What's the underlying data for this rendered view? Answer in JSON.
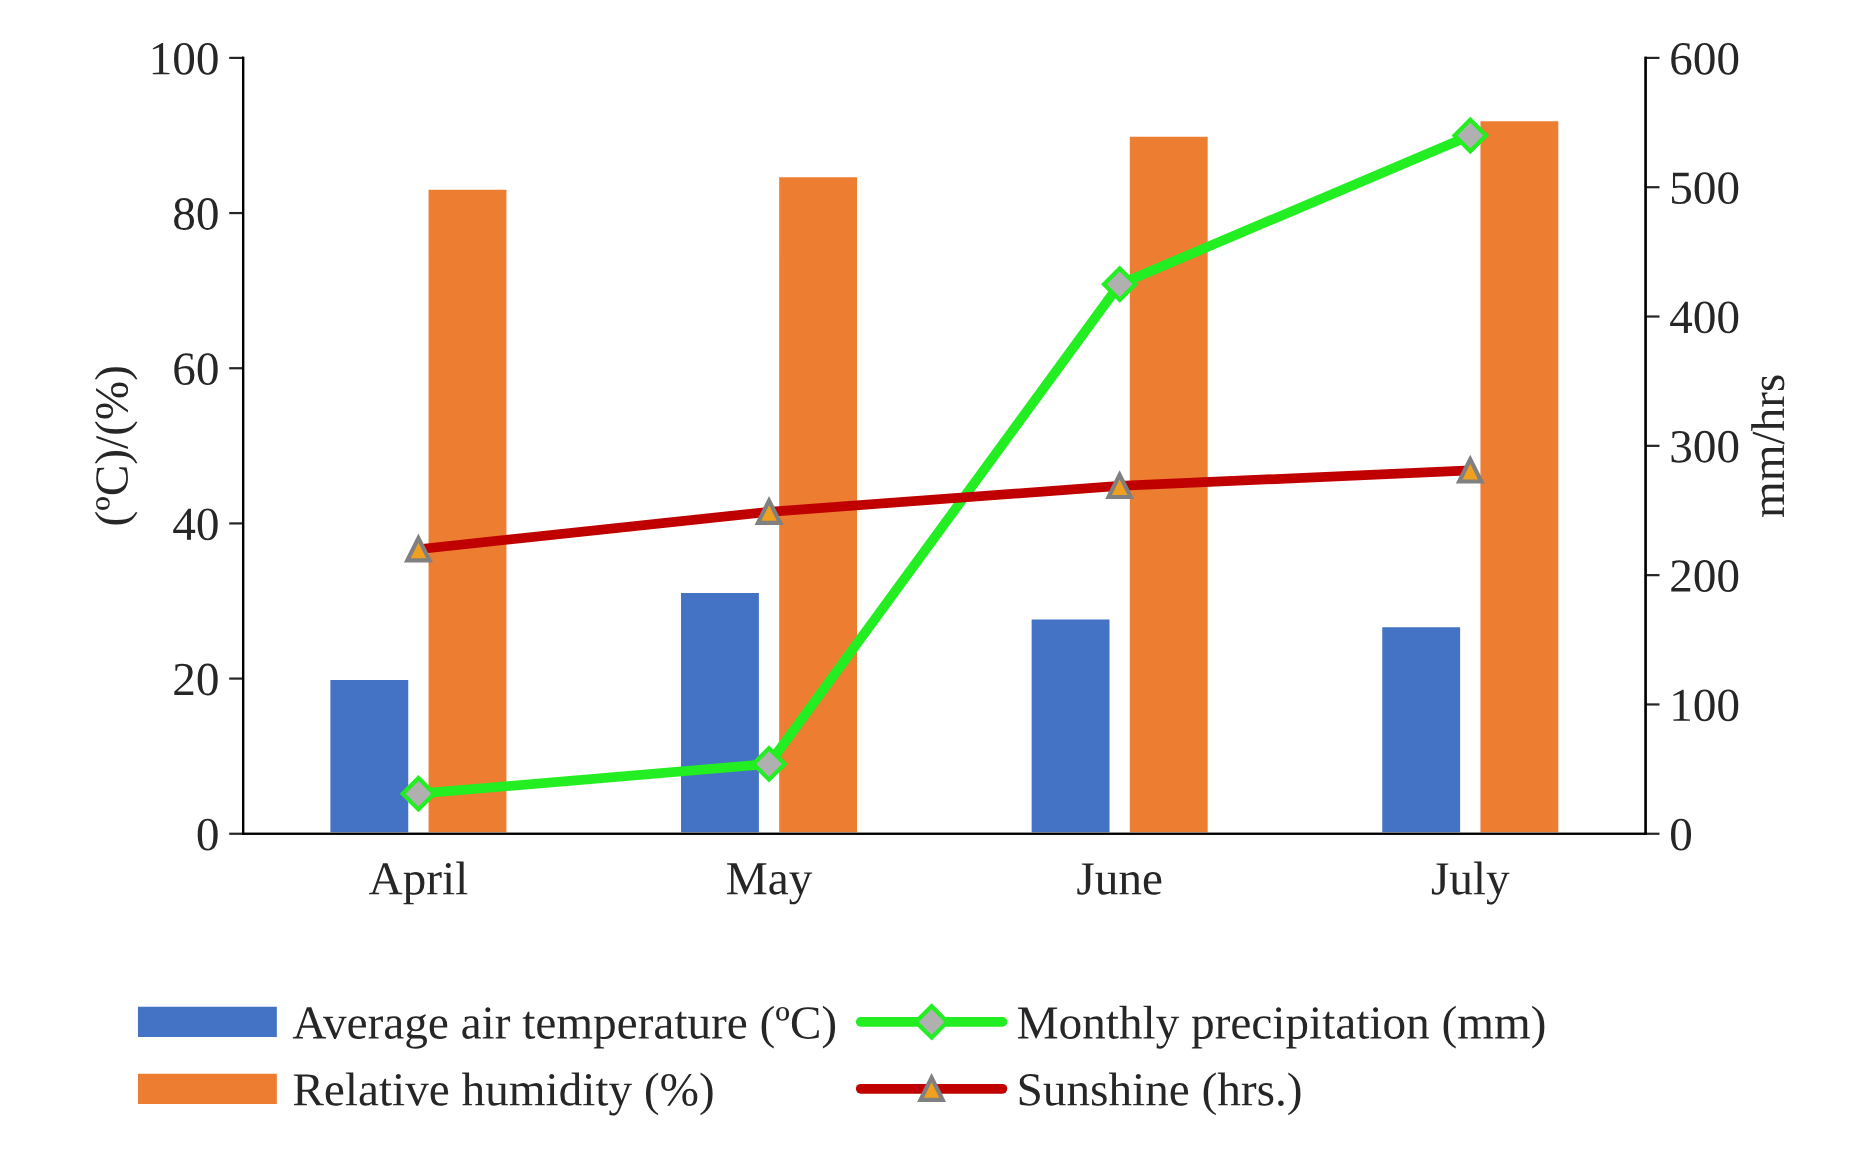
{
  "chart_data": {
    "type": "bar",
    "categories": [
      "April",
      "May",
      "June",
      "July"
    ],
    "ylabel": "(ºC)/(%)",
    "y2label": "mm/hrs",
    "ylim": [
      0,
      100
    ],
    "yticks": [
      0,
      20,
      40,
      60,
      80,
      100
    ],
    "y2lim": [
      0,
      600
    ],
    "y2ticks": [
      0,
      100,
      200,
      300,
      400,
      500,
      600
    ],
    "legend": "bottom",
    "grid": false,
    "series": [
      {
        "name": "Average air temperature (ºC)",
        "color": "#4472c4",
        "values": [
          20,
          31.2,
          27.8,
          26.8
        ]
      },
      {
        "name": "Relative humidity (%)",
        "color": "#ed7d31",
        "values": [
          83.2,
          84.8,
          90,
          92
        ]
      },
      {
        "name": "Monthly precipitation (mm)",
        "type": "line",
        "axis": "y2",
        "marker": "diamond",
        "color": "#22ee22",
        "values": [
          31,
          54,
          425,
          540
        ]
      },
      {
        "name": "Sunshine (hrs.)",
        "type": "line",
        "axis": "y2",
        "marker": "triangle",
        "color": "#c00000",
        "values": [
          220,
          249,
          269,
          281
        ]
      }
    ]
  }
}
